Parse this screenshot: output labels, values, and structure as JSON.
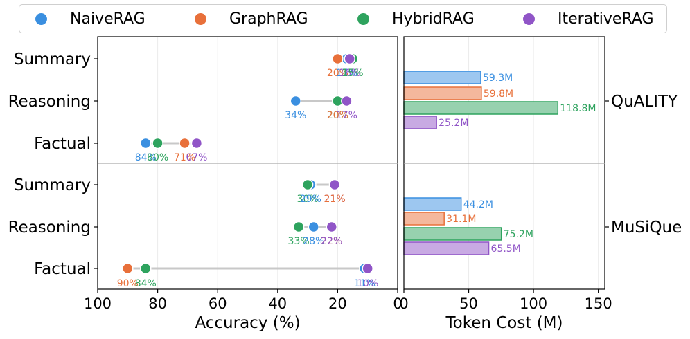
{
  "colors": {
    "NaiveRAG": "#3a8fe0",
    "GraphRAG": "#e8703a",
    "HybridRAG": "#2ea35e",
    "IterativeRAG": "#9055c7"
  },
  "legend": {
    "items": [
      {
        "name": "NaiveRAG",
        "color": "#3a8fe0"
      },
      {
        "name": "GraphRAG",
        "color": "#e8703a"
      },
      {
        "name": "HybridRAG",
        "color": "#2ea35e"
      },
      {
        "name": "IterativeRAG",
        "color": "#9055c7"
      }
    ]
  },
  "chart_data": [
    {
      "type": "dot-plot",
      "xlabel": "Accuracy (%)",
      "xlim": [
        100,
        0
      ],
      "xticks": [
        "100",
        "80",
        "60",
        "40",
        "20",
        "0"
      ],
      "series_order": [
        "NaiveRAG",
        "GraphRAG",
        "HybridRAG",
        "IterativeRAG"
      ],
      "panels": [
        {
          "dataset": "QuALITY",
          "rows": [
            {
              "category": "Summary",
              "values": {
                "NaiveRAG": 17,
                "GraphRAG": 20,
                "HybridRAG": 15,
                "IterativeRAG": 16
              },
              "labels": [
                {
                  "series": "GraphRAG",
                  "text": "20%"
                },
                {
                  "series": "NaiveRAG",
                  "text": "17%"
                },
                {
                  "series": "IterativeRAG",
                  "text": "16%"
                },
                {
                  "series": "HybridRAG",
                  "text": "15%"
                }
              ]
            },
            {
              "category": "Reasoning",
              "values": {
                "NaiveRAG": 34,
                "GraphRAG": 20,
                "HybridRAG": 20,
                "IterativeRAG": 17
              },
              "labels": [
                {
                  "series": "NaiveRAG",
                  "text": "34%"
                },
                {
                  "series": "HybridRAG",
                  "text": "20%"
                },
                {
                  "series": "GraphRAG",
                  "text": "20%"
                },
                {
                  "series": "IterativeRAG",
                  "text": "17%"
                }
              ]
            },
            {
              "category": "Factual",
              "values": {
                "NaiveRAG": 84,
                "GraphRAG": 71,
                "HybridRAG": 80,
                "IterativeRAG": 67
              },
              "labels": [
                {
                  "series": "NaiveRAG",
                  "text": "84%"
                },
                {
                  "series": "HybridRAG",
                  "text": "80%"
                },
                {
                  "series": "GraphRAG",
                  "text": "71%"
                },
                {
                  "series": "IterativeRAG",
                  "text": "67%"
                }
              ]
            }
          ]
        },
        {
          "dataset": "MuSiQue",
          "rows": [
            {
              "category": "Summary",
              "values": {
                "NaiveRAG": 29,
                "GraphRAG": 21,
                "HybridRAG": 30,
                "IterativeRAG": 21
              },
              "labels": [
                {
                  "series": "HybridRAG",
                  "text": "30%"
                },
                {
                  "series": "NaiveRAG",
                  "text": "29%"
                },
                {
                  "series": "IterativeRAG",
                  "text": "21%"
                },
                {
                  "series": "GraphRAG",
                  "text": "21%"
                }
              ]
            },
            {
              "category": "Reasoning",
              "values": {
                "NaiveRAG": 28,
                "GraphRAG": 22,
                "HybridRAG": 33,
                "IterativeRAG": 22
              },
              "labels": [
                {
                  "series": "HybridRAG",
                  "text": "33%"
                },
                {
                  "series": "NaiveRAG",
                  "text": "28%"
                },
                {
                  "series": "GraphRAG",
                  "text": "22%"
                },
                {
                  "series": "IterativeRAG",
                  "text": "22%"
                }
              ]
            },
            {
              "category": "Factual",
              "values": {
                "NaiveRAG": 11,
                "GraphRAG": 90,
                "HybridRAG": 84,
                "IterativeRAG": 10
              },
              "labels": [
                {
                  "series": "GraphRAG",
                  "text": "90%"
                },
                {
                  "series": "HybridRAG",
                  "text": "84%"
                },
                {
                  "series": "NaiveRAG",
                  "text": "11%"
                },
                {
                  "series": "IterativeRAG",
                  "text": "10%"
                }
              ]
            }
          ]
        }
      ]
    },
    {
      "type": "bar",
      "orientation": "horizontal",
      "xlabel": "Token Cost (M)",
      "xlim": [
        0,
        155
      ],
      "xticks": [
        "0",
        "50",
        "100",
        "150"
      ],
      "series_order": [
        "NaiveRAG",
        "GraphRAG",
        "HybridRAG",
        "IterativeRAG"
      ],
      "groups": [
        {
          "dataset": "QuALITY",
          "values": {
            "NaiveRAG": 59.3,
            "GraphRAG": 59.8,
            "HybridRAG": 118.8,
            "IterativeRAG": 25.2
          },
          "labels": {
            "NaiveRAG": "59.3M",
            "GraphRAG": "59.8M",
            "HybridRAG": "118.8M",
            "IterativeRAG": "25.2M"
          }
        },
        {
          "dataset": "MuSiQue",
          "values": {
            "NaiveRAG": 44.2,
            "GraphRAG": 31.1,
            "HybridRAG": 75.2,
            "IterativeRAG": 65.5
          },
          "labels": {
            "NaiveRAG": "44.2M",
            "GraphRAG": "31.1M",
            "HybridRAG": "75.2M",
            "IterativeRAG": "65.5M"
          }
        }
      ]
    }
  ]
}
